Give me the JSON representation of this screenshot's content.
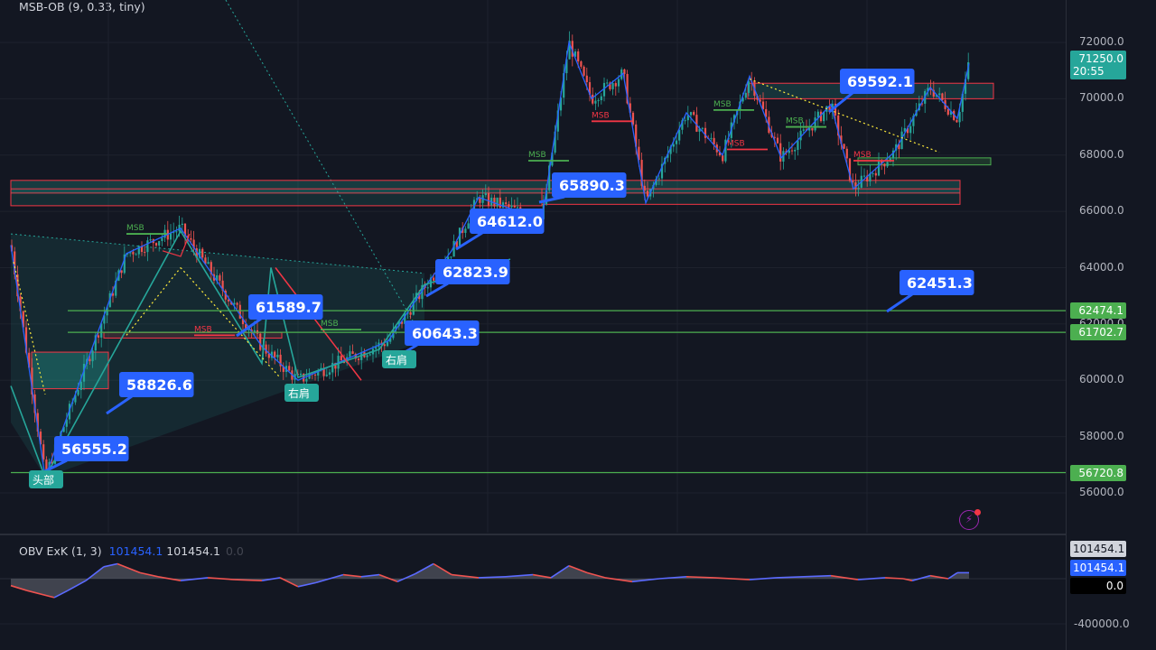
{
  "indicator_title": "MSB-OB (9, 0.33, tiny)",
  "obv_title": {
    "name": "OBV ExK (1, 3)",
    "v1": "101454.1",
    "v2": "101454.1",
    "v3": "0.0"
  },
  "colors": {
    "bg": "#131722",
    "up": "#26a69a",
    "down": "#ef5350",
    "label_bg": "#2962ff",
    "zigzag": "#2962ff",
    "msb_green": "#4caf50",
    "msb_red": "#f23645",
    "pattern": "#26a69a"
  },
  "chart_data": {
    "type": "candlestick",
    "ylim": [
      55000,
      73500
    ],
    "price_ticks": [
      "72000.0",
      "70000.0",
      "68000.0",
      "66000.0",
      "64000.0",
      "62000.0",
      "60000.0",
      "58000.0",
      "56000.0"
    ],
    "current_price": {
      "value": "71250.0",
      "countdown": "20:55"
    },
    "levels": [
      {
        "value": 62474.1,
        "label": "62474.1"
      },
      {
        "value": 61702.7,
        "label": "61702.7"
      },
      {
        "value": 56720.8,
        "label": "56720.8"
      }
    ],
    "price_labels": [
      {
        "text": "56555.2",
        "price": 56555.2
      },
      {
        "text": "58826.6",
        "price": 58826.6
      },
      {
        "text": "61589.7",
        "price": 61589.7
      },
      {
        "text": "60643.3",
        "price": 60643.3
      },
      {
        "text": "62823.9",
        "price": 62823.9
      },
      {
        "text": "64612.0",
        "price": 64612.0
      },
      {
        "text": "65890.3",
        "price": 65890.3
      },
      {
        "text": "69592.1",
        "price": 69592.1
      },
      {
        "text": "62451.3",
        "price": 62451.3
      }
    ],
    "pattern_labels": [
      "头部",
      "右肩",
      "右肩"
    ],
    "msb_label": "MSB",
    "zigzag": [
      [
        12,
        64800
      ],
      [
        50,
        56555
      ],
      [
        140,
        64500
      ],
      [
        200,
        65400
      ],
      [
        290,
        61200
      ],
      [
        330,
        60000
      ],
      [
        430,
        61400
      ],
      [
        470,
        63300
      ],
      [
        500,
        64600
      ],
      [
        530,
        66500
      ],
      [
        600,
        65700
      ],
      [
        630,
        72000
      ],
      [
        655,
        70000
      ],
      [
        690,
        70900
      ],
      [
        715,
        66300
      ],
      [
        760,
        69500
      ],
      [
        800,
        68000
      ],
      [
        830,
        70800
      ],
      [
        865,
        67900
      ],
      [
        920,
        69800
      ],
      [
        945,
        66800
      ],
      [
        990,
        68100
      ],
      [
        1030,
        70400
      ],
      [
        1060,
        69300
      ],
      [
        1073,
        71250
      ]
    ],
    "obv_axis": {
      "ylim": [
        -500000,
        450000
      ],
      "ticks": [
        "-400000.0"
      ],
      "badges": [
        "101454.1",
        "101454.1",
        "0.0"
      ]
    },
    "obv_series": [
      [
        12,
        -0.35
      ],
      [
        30,
        -0.6
      ],
      [
        60,
        -0.95
      ],
      [
        75,
        -0.6
      ],
      [
        95,
        -0.1
      ],
      [
        115,
        0.6
      ],
      [
        130,
        0.75
      ],
      [
        155,
        0.3
      ],
      [
        175,
        0.1
      ],
      [
        200,
        -0.1
      ],
      [
        230,
        0.05
      ],
      [
        260,
        -0.05
      ],
      [
        290,
        -0.1
      ],
      [
        310,
        0.05
      ],
      [
        330,
        -0.4
      ],
      [
        350,
        -0.2
      ],
      [
        380,
        0.2
      ],
      [
        400,
        0.1
      ],
      [
        420,
        0.2
      ],
      [
        440,
        -0.15
      ],
      [
        460,
        0.25
      ],
      [
        480,
        0.75
      ],
      [
        500,
        0.2
      ],
      [
        530,
        0.05
      ],
      [
        560,
        0.1
      ],
      [
        590,
        0.2
      ],
      [
        610,
        0.05
      ],
      [
        630,
        0.65
      ],
      [
        650,
        0.3
      ],
      [
        670,
        0.05
      ],
      [
        700,
        -0.15
      ],
      [
        730,
        0.0
      ],
      [
        760,
        0.1
      ],
      [
        790,
        0.05
      ],
      [
        830,
        -0.05
      ],
      [
        860,
        0.05
      ],
      [
        890,
        0.1
      ],
      [
        920,
        0.15
      ],
      [
        950,
        -0.05
      ],
      [
        980,
        0.05
      ],
      [
        1000,
        0.0
      ],
      [
        1010,
        -0.1
      ],
      [
        1030,
        0.15
      ],
      [
        1050,
        0.0
      ],
      [
        1060,
        0.3
      ],
      [
        1073,
        0.3
      ]
    ]
  }
}
